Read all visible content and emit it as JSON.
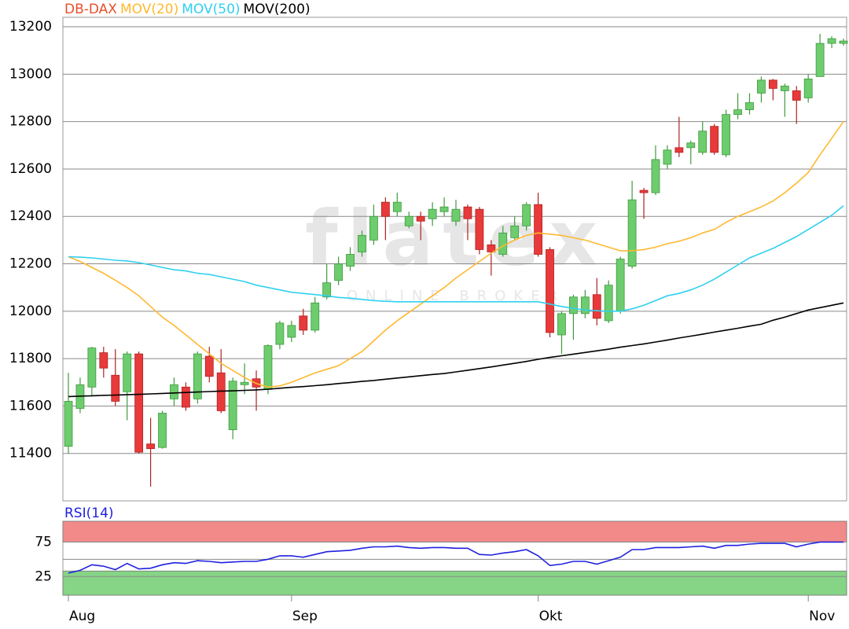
{
  "chart_data": [
    {
      "type": "candlestick",
      "title": "DB-DAX",
      "title_color": "#e8502a",
      "watermark": {
        "logo": "flatex",
        "tagline": "ONLINE BROKER"
      },
      "categories": [
        "Aug",
        null,
        null,
        null,
        null,
        null,
        null,
        null,
        null,
        null,
        null,
        null,
        null,
        null,
        null,
        null,
        null,
        null,
        null,
        "Sep",
        null,
        null,
        null,
        null,
        null,
        null,
        null,
        null,
        null,
        null,
        null,
        null,
        null,
        null,
        null,
        null,
        null,
        null,
        null,
        null,
        "Okt",
        null,
        null,
        null,
        null,
        null,
        null,
        null,
        null,
        null,
        null,
        null,
        null,
        null,
        null,
        null,
        null,
        null,
        null,
        null,
        null,
        null,
        null,
        "Nov",
        null,
        null,
        null
      ],
      "open": [
        11430,
        11590,
        11680,
        11825,
        11730,
        11660,
        11820,
        11440,
        11425,
        11630,
        11680,
        11630,
        11810,
        11740,
        11500,
        11690,
        11715,
        11670,
        11860,
        11890,
        11980,
        11920,
        12060,
        12130,
        12190,
        12250,
        12300,
        12460,
        12420,
        12360,
        12400,
        12390,
        12420,
        12380,
        12440,
        12430,
        12280,
        12240,
        12310,
        12360,
        12450,
        12260,
        11900,
        11990,
        11990,
        12070,
        11960,
        12000,
        12190,
        12510,
        12500,
        12620,
        12690,
        12690,
        12670,
        12780,
        12660,
        12830,
        12850,
        12920,
        12975,
        12930,
        12930,
        12900,
        12990,
        13130,
        13130
      ],
      "high": [
        11740,
        11720,
        11850,
        11850,
        11840,
        11830,
        11830,
        11550,
        11580,
        11720,
        11700,
        11830,
        11850,
        11840,
        11720,
        11780,
        11750,
        11860,
        11960,
        11960,
        12010,
        12060,
        12200,
        12230,
        12270,
        12340,
        12450,
        12480,
        12500,
        12420,
        12420,
        12460,
        12480,
        12470,
        12450,
        12440,
        12300,
        12360,
        12400,
        12460,
        12500,
        12270,
        12000,
        12070,
        12090,
        12140,
        12130,
        12230,
        12550,
        12520,
        12700,
        12700,
        12820,
        12720,
        12800,
        12790,
        12850,
        12920,
        12920,
        12990,
        12980,
        12960,
        12950,
        13000,
        13170,
        13160,
        13150
      ],
      "low": [
        11400,
        11570,
        11640,
        11720,
        11600,
        11540,
        11400,
        11260,
        11420,
        11600,
        11580,
        11610,
        11700,
        11570,
        11460,
        11650,
        11580,
        11650,
        11840,
        11870,
        11900,
        11910,
        12050,
        12110,
        12170,
        12230,
        12280,
        12300,
        12400,
        12350,
        12300,
        12360,
        12400,
        12360,
        12300,
        12240,
        12150,
        12230,
        12300,
        12340,
        12230,
        11890,
        11820,
        11880,
        11970,
        11940,
        11950,
        11990,
        12180,
        12390,
        12490,
        12600,
        12650,
        12620,
        12660,
        12660,
        12650,
        12810,
        12830,
        12880,
        12890,
        12820,
        12790,
        12880,
        12990,
        13110,
        13120
      ],
      "close": [
        11620,
        11690,
        11845,
        11760,
        11620,
        11820,
        11405,
        11420,
        11570,
        11690,
        11595,
        11820,
        11725,
        11580,
        11705,
        11700,
        11680,
        11855,
        11950,
        11940,
        11920,
        12035,
        12120,
        12200,
        12240,
        12320,
        12400,
        12400,
        12460,
        12400,
        12380,
        12430,
        12440,
        12430,
        12390,
        12260,
        12250,
        12330,
        12360,
        12450,
        12240,
        11910,
        11990,
        12060,
        12060,
        11970,
        12110,
        12220,
        12470,
        12500,
        12640,
        12680,
        12670,
        12710,
        12760,
        12670,
        12830,
        12850,
        12880,
        12975,
        12940,
        12950,
        12890,
        12980,
        13130,
        13150,
        13140
      ],
      "up_color": "#6dcc6d",
      "down_color": "#e83a3a",
      "series": [
        {
          "name": "MOV(20)",
          "color": "#ffb830",
          "values": [
            12230,
            12210,
            12185,
            12160,
            12130,
            12100,
            12065,
            12020,
            11975,
            11940,
            11900,
            11860,
            11820,
            11780,
            11750,
            11720,
            11695,
            11680,
            11685,
            11700,
            11720,
            11740,
            11755,
            11770,
            11800,
            11830,
            11875,
            11920,
            11960,
            11995,
            12030,
            12065,
            12100,
            12140,
            12175,
            12210,
            12245,
            12275,
            12300,
            12320,
            12330,
            12325,
            12320,
            12310,
            12300,
            12285,
            12270,
            12255,
            12255,
            12260,
            12270,
            12285,
            12295,
            12310,
            12330,
            12345,
            12375,
            12400,
            12420,
            12440,
            12465,
            12500,
            12540,
            12585,
            12660,
            12730,
            12800
          ]
        },
        {
          "name": "MOV(50)",
          "color": "#30d0f0",
          "values": [
            12230,
            12228,
            12225,
            12220,
            12215,
            12212,
            12205,
            12195,
            12185,
            12175,
            12170,
            12160,
            12155,
            12145,
            12135,
            12125,
            12110,
            12100,
            12090,
            12080,
            12075,
            12070,
            12065,
            12058,
            12055,
            12050,
            12045,
            12042,
            12040,
            12040,
            12040,
            12040,
            12040,
            12040,
            12040,
            12040,
            12040,
            12040,
            12040,
            12040,
            12040,
            12030,
            12020,
            12012,
            12005,
            12002,
            12000,
            12000,
            12010,
            12025,
            12045,
            12065,
            12075,
            12090,
            12110,
            12135,
            12165,
            12195,
            12225,
            12245,
            12265,
            12290,
            12315,
            12345,
            12375,
            12405,
            12445
          ]
        },
        {
          "name": "MOV(200)",
          "color": "#000000",
          "values": [
            11640,
            11642,
            11643,
            11645,
            11646,
            11648,
            11649,
            11651,
            11653,
            11655,
            11657,
            11659,
            11661,
            11663,
            11664,
            11666,
            11668,
            11671,
            11675,
            11679,
            11682,
            11686,
            11690,
            11695,
            11699,
            11704,
            11708,
            11713,
            11718,
            11723,
            11728,
            11733,
            11737,
            11744,
            11751,
            11758,
            11765,
            11773,
            11780,
            11788,
            11797,
            11805,
            11812,
            11819,
            11826,
            11833,
            11840,
            11848,
            11855,
            11862,
            11870,
            11878,
            11887,
            11895,
            11903,
            11912,
            11920,
            11928,
            11937,
            11945,
            11962,
            11975,
            11990,
            12005,
            12015,
            12025,
            12035
          ]
        }
      ],
      "ylim": [
        11200,
        13240
      ],
      "yticks": [
        11400,
        11600,
        11800,
        12000,
        12200,
        12400,
        12600,
        12800,
        13000,
        13200
      ],
      "grid": true
    },
    {
      "type": "line",
      "series": [
        {
          "name": "RSI(14)",
          "color": "#2020e0",
          "values": [
            30,
            34,
            42,
            40,
            35,
            44,
            36,
            37,
            42,
            45,
            44,
            48,
            47,
            45,
            46,
            47,
            47,
            50,
            55,
            55,
            53,
            57,
            61,
            62,
            63,
            66,
            68,
            68,
            69,
            67,
            66,
            67,
            67,
            66,
            66,
            57,
            56,
            59,
            61,
            64,
            55,
            41,
            43,
            47,
            47,
            43,
            48,
            53,
            64,
            64,
            67,
            67,
            67,
            68,
            69,
            66,
            70,
            70,
            72,
            73,
            73,
            73,
            68,
            72,
            75,
            75,
            75
          ]
        }
      ],
      "bands": [
        {
          "from": 75,
          "to": 105,
          "color": "#f28a8a"
        },
        {
          "from": -2,
          "to": 33,
          "color": "#86d486"
        }
      ],
      "ylim": [
        -2,
        105
      ],
      "yticks": [
        25,
        75
      ],
      "grid_values": [
        25,
        50,
        75
      ]
    }
  ]
}
